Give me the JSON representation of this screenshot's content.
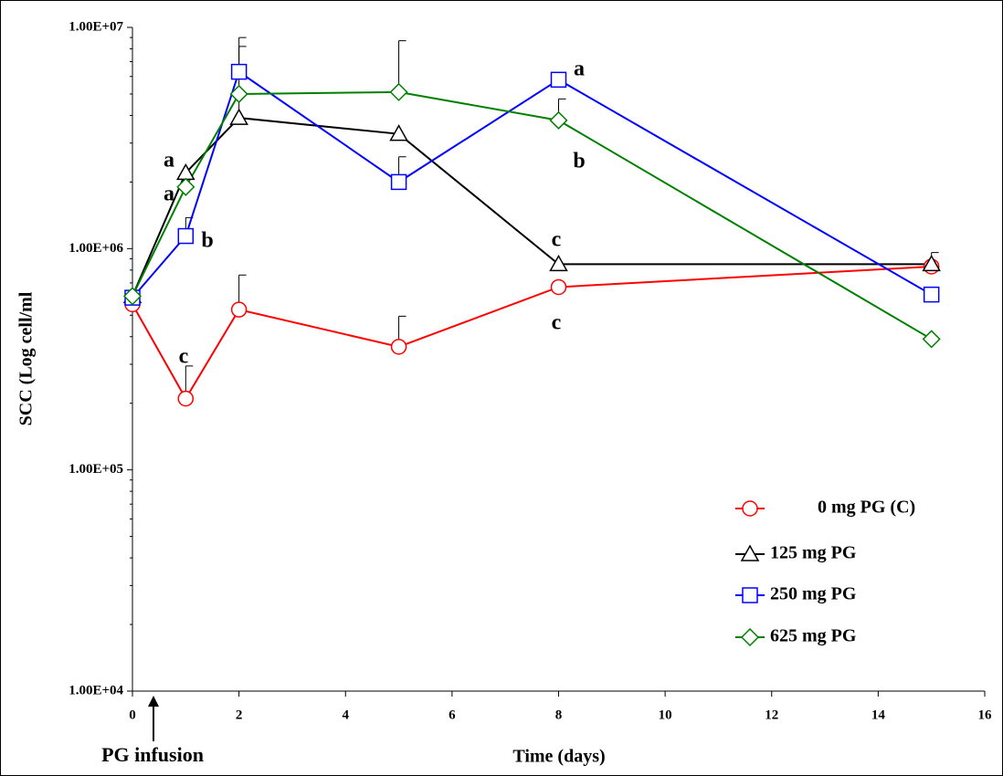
{
  "chart_data": {
    "type": "line",
    "y_label": "SCC (Log cell/ml",
    "x_label": "Time (days)",
    "arrow_label": "PG infusion",
    "ylog": true,
    "xlim": [
      0,
      16
    ],
    "xticks": [
      0,
      2,
      4,
      6,
      8,
      10,
      12,
      14,
      16
    ],
    "ylim": [
      10000,
      10000000
    ],
    "yticks": [
      {
        "value": 10000,
        "label": "1.00E+04"
      },
      {
        "value": 100000,
        "label": "1.00E+05"
      },
      {
        "value": 1000000,
        "label": "1.00E+06"
      },
      {
        "value": 10000000,
        "label": "1.00E+07"
      }
    ],
    "x": [
      0,
      1,
      2,
      5,
      8,
      15
    ],
    "series": [
      {
        "name": "0 mg PG (C)",
        "color": "#ff0000",
        "marker": "circle",
        "values": [
          560000,
          210000,
          530000,
          360000,
          670000,
          830000
        ],
        "errors": [
          null,
          85000,
          230000,
          135000,
          null,
          null
        ]
      },
      {
        "name": "125 mg PG",
        "color": "#000000",
        "marker": "triangle",
        "values": [
          610000,
          2200000,
          3900000,
          3300000,
          850000,
          850000
        ],
        "errors": [
          null,
          null,
          4300000,
          null,
          null,
          110000
        ]
      },
      {
        "name": "250 mg PG",
        "color": "#0000ff",
        "marker": "square",
        "values": [
          600000,
          1140000,
          6300000,
          2000000,
          5800000,
          620000
        ],
        "errors": [
          null,
          240000,
          2700000,
          600000,
          null,
          null
        ]
      },
      {
        "name": "625 mg PG",
        "color": "#008000",
        "marker": "diamond",
        "values": [
          610000,
          1900000,
          5000000,
          5100000,
          3800000,
          390000
        ],
        "errors": [
          null,
          null,
          null,
          3600000,
          950000,
          null
        ]
      }
    ],
    "annotations": [
      "a",
      "a",
      "b",
      "c",
      "a",
      "b",
      "c",
      "c"
    ]
  }
}
